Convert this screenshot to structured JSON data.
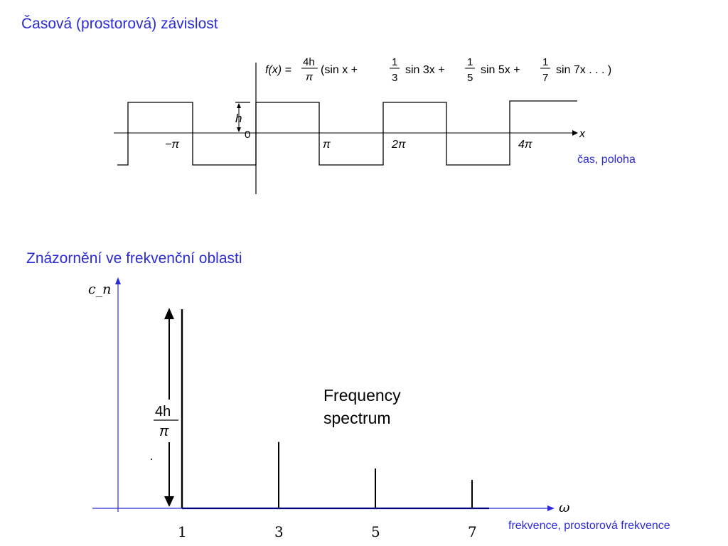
{
  "titles": {
    "time_domain": "Časová (prostorová) závislost",
    "freq_domain": "Znázornění ve frekvenční oblasti"
  },
  "time_plot": {
    "formula": {
      "lhs": "f(x) =",
      "coef_num": "4h",
      "coef_den": "π",
      "open": "(sin x +",
      "t3_num": "1",
      "t3_den": "3",
      "t3_text": "sin 3x +",
      "t5_num": "1",
      "t5_den": "5",
      "t5_text": "sin 5x +",
      "t7_num": "1",
      "t7_den": "7",
      "t7_text": "sin 7x . . . )"
    },
    "amplitude_label": "h",
    "origin_label": "0",
    "x_axis_label": "x",
    "tick_labels": [
      "−π",
      "π",
      "2π",
      "4π"
    ],
    "axis_caption": "čas, poloha"
  },
  "chart_data": {
    "type": "bar",
    "title": "Frequency spectrum",
    "xlabel": "ω",
    "ylabel": "c_n",
    "categories": [
      "1",
      "3",
      "5",
      "7"
    ],
    "values": [
      1,
      0.3333,
      0.2,
      0.1429
    ],
    "amplitude_label_num": "4h",
    "amplitude_label_den": "π",
    "title_line1": "Frequency",
    "title_line2": "spectrum",
    "axis_caption": "frekvence, prostorová frekvence",
    "colors": {
      "axes": "#2b2bd6",
      "bars": "#000000"
    }
  }
}
